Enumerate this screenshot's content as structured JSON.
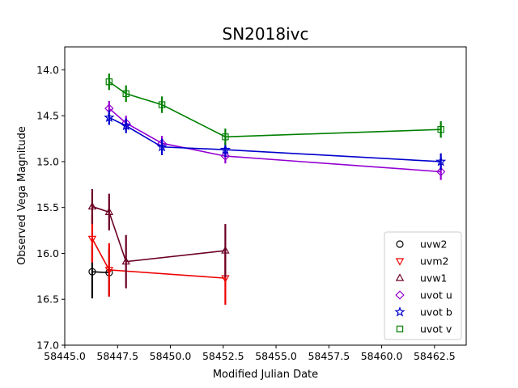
{
  "chart_data": {
    "type": "scatter",
    "title": "SN2018ivc",
    "xlabel": "Modified Julian Date",
    "ylabel": "Observed Vega Magnitude",
    "xlim": [
      58445.0,
      58464.0
    ],
    "ylim": [
      17.0,
      13.75
    ],
    "y_inverted": true,
    "xticks": [
      58445.0,
      58447.5,
      58450.0,
      58452.5,
      58455.0,
      58457.5,
      58460.0,
      58462.5
    ],
    "xtick_labels": [
      "58445.0",
      "58447.5",
      "58450.0",
      "58452.5",
      "58455.0",
      "58457.5",
      "58460.0",
      "58462.5"
    ],
    "yticks": [
      14.0,
      14.5,
      15.0,
      15.5,
      16.0,
      16.5,
      17.0
    ],
    "ytick_labels": [
      "14.0",
      "14.5",
      "15.0",
      "15.5",
      "16.0",
      "16.5",
      "17.0"
    ],
    "grid": false,
    "legend_position": "lower-right",
    "series": [
      {
        "name": "uvw2",
        "marker": "circle",
        "color": "#000000",
        "x": [
          58446.3,
          58447.1
        ],
        "y": [
          16.2,
          16.21
        ],
        "err": [
          0.29,
          0.26
        ]
      },
      {
        "name": "uvm2",
        "marker": "triangle-down",
        "color": "#ee0000",
        "x": [
          58446.3,
          58447.1,
          58452.6
        ],
        "y": [
          15.84,
          16.18,
          16.27
        ],
        "err": [
          0.26,
          0.29,
          0.29
        ]
      },
      {
        "name": "uvw1",
        "marker": "triangle-up",
        "color": "#6b0024",
        "x": [
          58446.3,
          58447.1,
          58447.9,
          58452.6
        ],
        "y": [
          15.49,
          15.55,
          16.09,
          15.97
        ],
        "err": [
          0.19,
          0.2,
          0.29,
          0.29
        ]
      },
      {
        "name": "uvot u",
        "marker": "diamond",
        "color": "#9400d3",
        "x": [
          58447.1,
          58447.9,
          58449.6,
          58452.6,
          58462.8
        ],
        "y": [
          14.42,
          14.58,
          14.8,
          14.94,
          15.11
        ],
        "err": [
          0.08,
          0.08,
          0.08,
          0.08,
          0.09
        ]
      },
      {
        "name": "uvot b",
        "marker": "star",
        "color": "#0000cc",
        "x": [
          58447.1,
          58447.9,
          58449.6,
          58452.6,
          58462.8
        ],
        "y": [
          14.52,
          14.61,
          14.84,
          14.87,
          15.0
        ],
        "err": [
          0.08,
          0.08,
          0.09,
          0.08,
          0.09
        ]
      },
      {
        "name": "uvot v",
        "marker": "square",
        "color": "#008000",
        "x": [
          58447.1,
          58447.9,
          58449.6,
          58452.6,
          58462.8
        ],
        "y": [
          14.13,
          14.26,
          14.38,
          14.73,
          14.65
        ],
        "err": [
          0.09,
          0.09,
          0.09,
          0.09,
          0.09
        ]
      }
    ]
  }
}
